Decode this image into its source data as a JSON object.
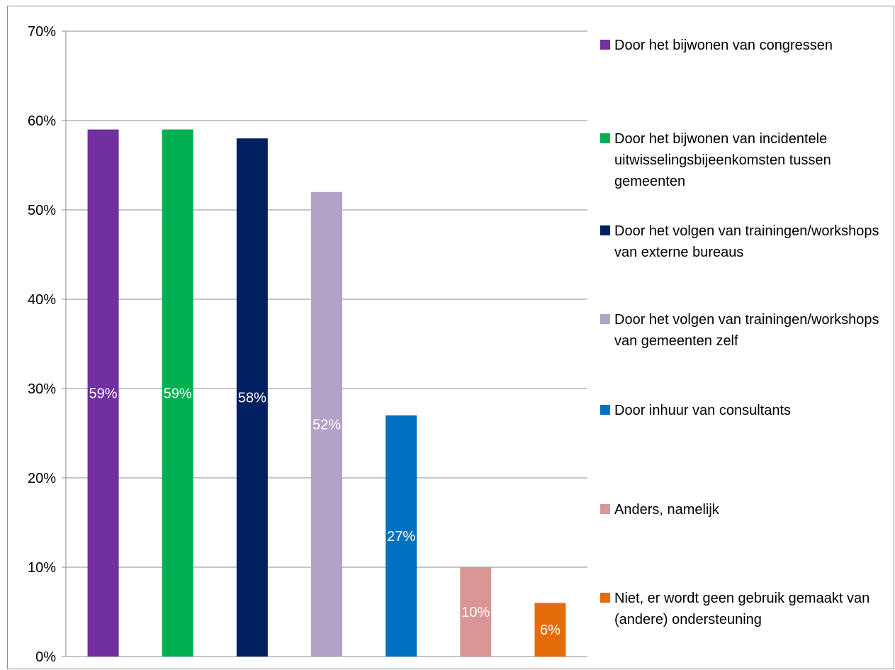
{
  "chart_data": {
    "type": "bar",
    "title": "",
    "xlabel": "",
    "ylabel": "",
    "ylim": [
      0,
      70
    ],
    "y_ticks": [
      "0%",
      "10%",
      "20%",
      "30%",
      "40%",
      "50%",
      "60%",
      "70%"
    ],
    "grid": true,
    "legend_position": "right",
    "series": [
      {
        "name": "Door het bijwonen van congressen",
        "value": 59,
        "label": "59%",
        "color": "#7030a0"
      },
      {
        "name": "Door het bijwonen van incidentele uitwisselingsbijeenkomsten tussen gemeenten",
        "value": 59,
        "label": "59%",
        "color": "#00b050"
      },
      {
        "name": "Door het volgen van trainingen/workshops van externe bureaus",
        "value": 58,
        "label": "58%",
        "color": "#002060"
      },
      {
        "name": "Door het volgen van trainingen/workshops van gemeenten zelf",
        "value": 52,
        "label": "52%",
        "color": "#b3a2c7"
      },
      {
        "name": "Door inhuur van consultants",
        "value": 27,
        "label": "27%",
        "color": "#0070c0"
      },
      {
        "name": "Anders, namelijk",
        "value": 10,
        "label": "10%",
        "color": "#d99694"
      },
      {
        "name": "Niet, er wordt geen gebruik gemaakt van (andere) ondersteuning",
        "value": 6,
        "label": "6%",
        "color": "#e46c0a"
      }
    ]
  }
}
